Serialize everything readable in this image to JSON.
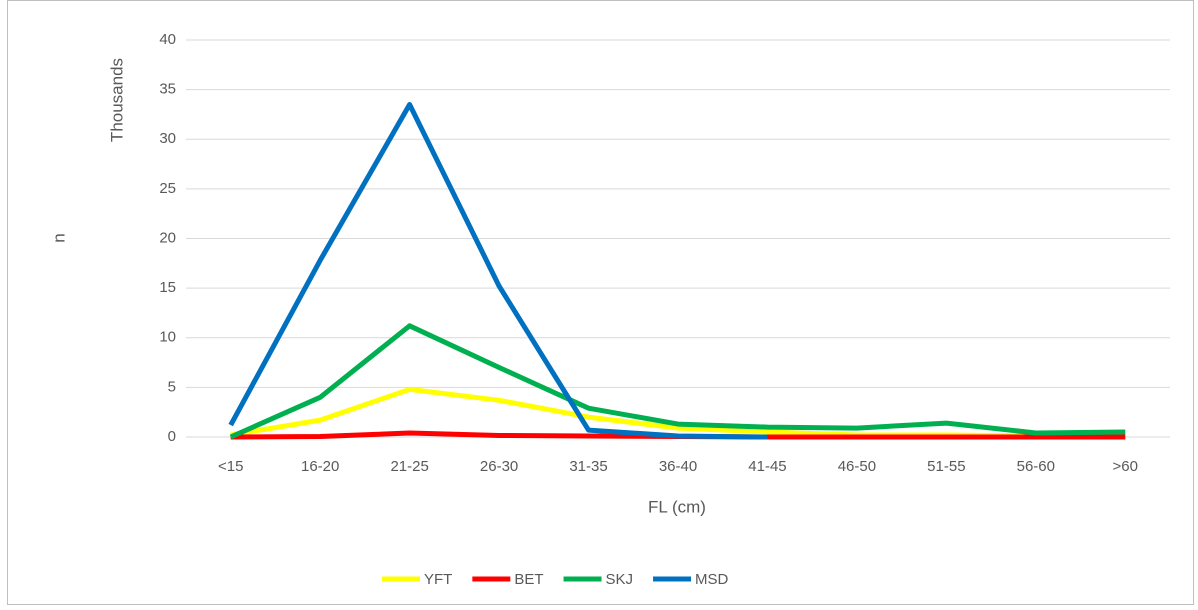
{
  "chart_data": {
    "type": "line",
    "categories": [
      "<15",
      "16-20",
      "21-25",
      "26-30",
      "31-35",
      "36-40",
      "41-45",
      "46-50",
      "51-55",
      "56-60",
      ">60"
    ],
    "series": [
      {
        "name": "YFT",
        "color": "#ffff00",
        "values": [
          0.2,
          1.7,
          4.8,
          3.7,
          2.0,
          0.9,
          0.5,
          0.2,
          0.2,
          0.1,
          0.1
        ]
      },
      {
        "name": "BET",
        "color": "#ff0000",
        "values": [
          0.0,
          0.05,
          0.4,
          0.15,
          0.1,
          0.05,
          0.0,
          0.0,
          0.0,
          0.0,
          0.0
        ]
      },
      {
        "name": "SKJ",
        "color": "#00b050",
        "values": [
          0.0,
          4.0,
          11.2,
          7.0,
          2.9,
          1.3,
          1.0,
          0.9,
          1.4,
          0.4,
          0.5
        ]
      },
      {
        "name": "MSD",
        "color": "#0070c0",
        "values": [
          1.2,
          17.8,
          33.5,
          15.2,
          0.7,
          0.1,
          0.0,
          null,
          null,
          null,
          null
        ]
      }
    ],
    "ylim": [
      0,
      40
    ],
    "yticks": [
      0,
      5,
      10,
      15,
      20,
      25,
      30,
      35,
      40
    ],
    "y_label": "n",
    "y_unit_label": "Thousands",
    "x_label": "FL (cm)",
    "grid": true,
    "legend": "bottom"
  }
}
